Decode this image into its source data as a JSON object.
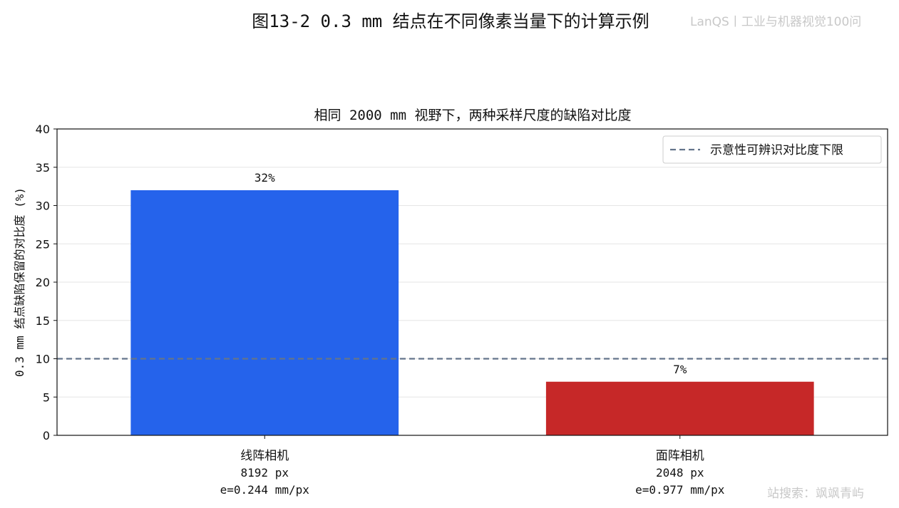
{
  "figure_title": "图13-2  0.3 mm 结点在不同像素当量下的计算示例",
  "watermark_top": "LanQS丨工业与机器视觉100问",
  "watermark_bottom": "站搜索：飒飒青屿",
  "chart_data": {
    "type": "bar",
    "title": "相同 2000 mm 视野下，两种采样尺度的缺陷对比度",
    "xlabel": "",
    "ylabel": "0.3 mm 结点缺陷保留的对比度 (%)",
    "ylim": [
      0,
      40
    ],
    "yticks": [
      0,
      5,
      10,
      15,
      20,
      25,
      30,
      35,
      40
    ],
    "grid": "y",
    "categories": [
      {
        "name": "线阵相机",
        "pixels": "8192 px",
        "equiv": "e=0.244 mm/px"
      },
      {
        "name": "面阵相机",
        "pixels": "2048 px",
        "equiv": "e=0.977 mm/px"
      }
    ],
    "values": [
      32,
      7
    ],
    "value_labels": [
      "32%",
      "7%"
    ],
    "colors": [
      "#2563eb",
      "#c62828"
    ],
    "threshold": {
      "value": 10,
      "label": "示意性可辨识对比度下限",
      "color": "#64748b"
    },
    "legend_position": "top-right"
  }
}
